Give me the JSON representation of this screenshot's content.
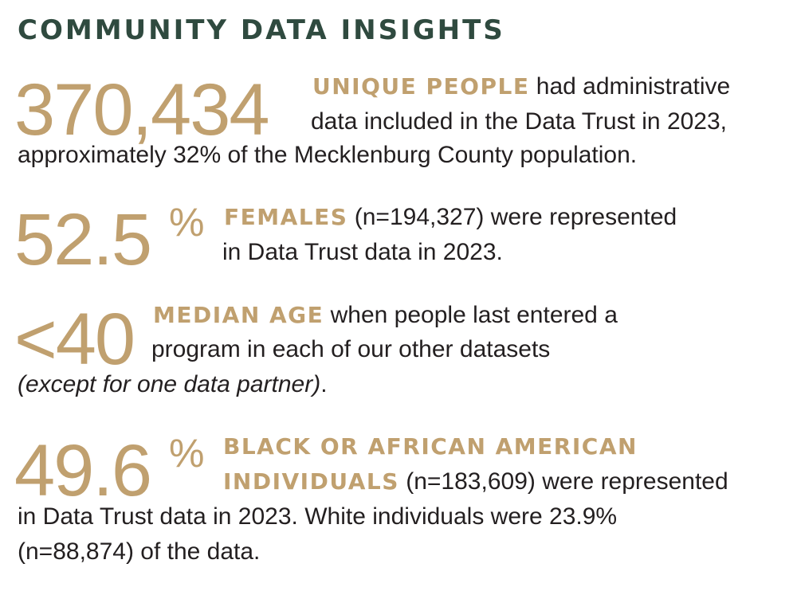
{
  "title": "COMMUNITY DATA INSIGHTS",
  "stat1": {
    "number": "370,434",
    "highlight": "UNIQUE PEOPLE",
    "line1_rest": " had administrative",
    "line2": "data included in the Data Trust in 2023,",
    "line3": "approximately 32% of the Mecklenburg County population."
  },
  "stat2": {
    "number": "52.5",
    "percent": "%",
    "highlight": "FEMALES",
    "line1_rest": " (n=194,327) were represented",
    "line2": "in Data Trust data in 2023."
  },
  "stat3": {
    "number": "<40",
    "highlight": "MEDIAN AGE",
    "line1_rest": " when people last entered a",
    "line2": "program in each of our other datasets",
    "line3_italic": "(except for one data partner)",
    "line3_end": "."
  },
  "stat4": {
    "number": "49.6",
    "percent": "%",
    "highlight_line1": "BLACK OR AFRICAN AMERICAN",
    "highlight_line2": "INDIVIDUALS",
    "line2_rest": " (n=183,609) were represented",
    "line3": "in Data Trust data in 2023. White individuals were 23.9%",
    "line4": "(n=88,874) of the data."
  },
  "colors": {
    "title": "#2f4a3f",
    "accent": "#c0a06f",
    "text": "#231f20"
  }
}
